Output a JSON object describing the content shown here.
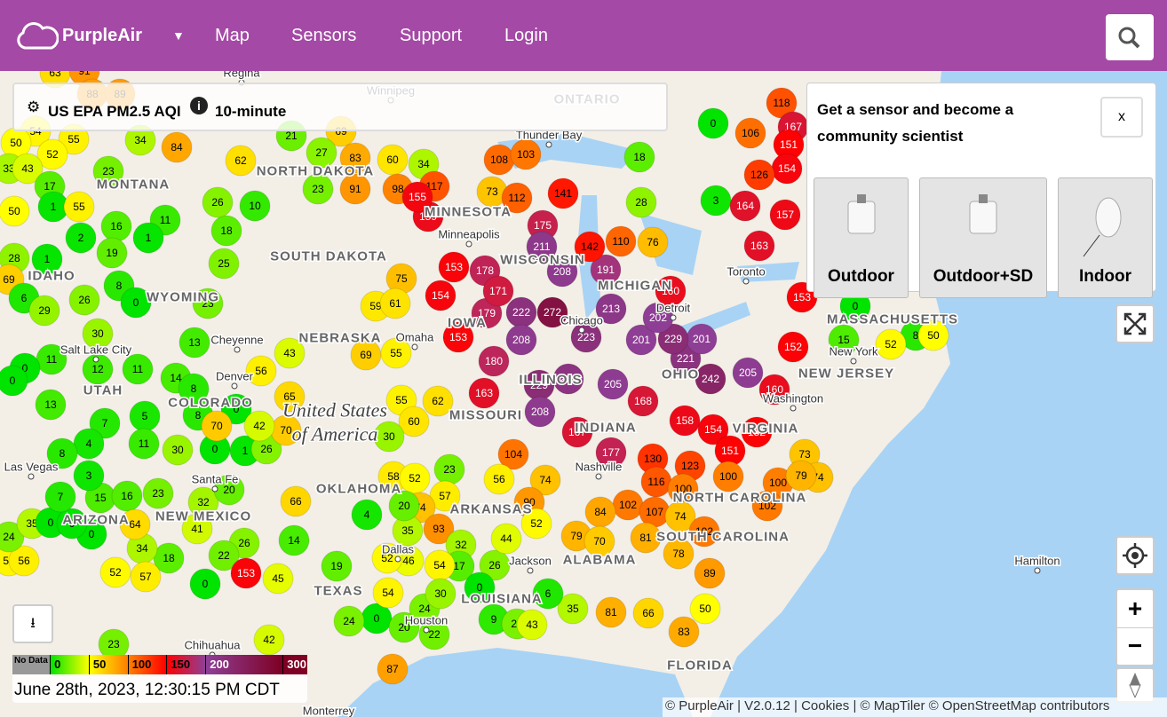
{
  "header": {
    "brand": "PurpleAir",
    "nav": [
      "Map",
      "Sensors",
      "Support",
      "Login"
    ]
  },
  "toolbar": {
    "metric": "US EPA PM2.5 AQI",
    "period": "10-minute"
  },
  "promo": {
    "title": "Get a sensor and become a community scientist",
    "close": "x",
    "products": [
      "Outdoor",
      "Outdoor+SD",
      "Indoor"
    ]
  },
  "legend": {
    "no_data": "No Data",
    "ticks": [
      0,
      50,
      100,
      150,
      200,
      300
    ]
  },
  "timestamp": "June 28th, 2023, 12:30:15 PM CDT",
  "attribution": "© PurpleAir | V2.0.12 | Cookies | © MapTiler © OpenStreetMap contributors",
  "map": {
    "country": [
      "United States",
      "of America"
    ],
    "states": [
      "MONTANA",
      "NORTH DAKOTA",
      "MINNESOTA",
      "WISCONSIN",
      "MICHIGAN",
      "SOUTH DAKOTA",
      "WYOMING",
      "IDAHO",
      "NEBRASKA",
      "IOWA",
      "ILLINOIS",
      "INDIANA",
      "OHIO",
      "UTAH",
      "COLORADO",
      "MISSOURI",
      "ARIZONA",
      "NEW MEXICO",
      "OKLAHOMA",
      "ARKANSAS",
      "TEXAS",
      "LOUISIANA",
      "ALABAMA",
      "NORTH CAROLINA",
      "SOUTH CAROLINA",
      "VIRGINIA",
      "NEW JERSEY",
      "MASSACHUSETTS",
      "FLORIDA",
      "ONTARIO"
    ],
    "cities": [
      "Regina",
      "Winnipeg",
      "Thunder Bay",
      "Minneapolis",
      "Toronto",
      "Detroit",
      "Chicago",
      "Omaha",
      "Cheyenne",
      "Salt Lake City",
      "Denver",
      "Las Vegas",
      "Santa Fe",
      "Nashville",
      "Washington",
      "New York",
      "Dallas",
      "Jackson",
      "Houston",
      "Chihuahua",
      "Monterrey",
      "Hamilton"
    ]
  },
  "sensors": [
    63,
    91,
    88,
    89,
    54,
    55,
    50,
    52,
    33,
    43,
    17,
    1,
    55,
    23,
    50,
    16,
    2,
    11,
    1,
    19,
    28,
    1,
    69,
    6,
    29,
    26,
    8,
    0,
    30,
    11,
    12,
    11,
    0,
    0,
    13,
    7,
    4,
    8,
    5,
    11,
    30,
    0,
    1,
    26,
    8,
    14,
    8,
    13,
    23,
    25,
    18,
    26,
    10,
    34,
    84,
    62,
    21,
    69,
    83,
    27,
    91,
    23,
    60,
    34,
    98,
    117,
    73,
    112,
    108,
    103,
    141,
    175,
    211,
    208,
    191,
    110,
    76,
    28,
    18,
    3,
    0,
    118,
    167,
    151,
    154,
    106,
    126,
    164,
    157,
    163,
    153,
    152,
    160,
    205,
    242,
    221,
    201,
    229,
    201,
    202,
    160,
    213,
    223,
    272,
    222,
    208,
    180,
    179,
    153,
    154,
    153,
    178,
    171,
    163,
    229,
    219,
    208,
    205,
    168,
    167,
    177,
    158,
    154,
    151,
    152,
    123,
    130,
    116,
    100,
    100,
    100,
    102,
    107,
    74,
    102,
    102,
    73,
    74,
    79,
    142,
    159,
    155,
    75,
    59,
    61,
    69,
    55,
    43,
    65,
    70,
    56,
    0,
    42,
    70,
    62,
    55,
    60,
    30,
    58,
    52,
    23,
    57,
    74,
    104,
    56,
    74,
    90,
    52,
    84,
    79,
    70,
    81,
    78,
    89,
    50,
    83,
    81,
    66,
    35,
    93,
    46,
    26,
    44,
    32,
    17,
    54,
    52,
    35,
    20,
    18,
    19,
    4,
    66,
    14,
    26,
    22,
    41,
    32,
    20,
    34,
    57,
    52,
    0,
    153,
    45,
    23,
    42,
    87,
    0,
    24,
    20,
    22,
    24,
    30,
    0,
    9,
    24,
    43,
    6,
    54,
    54,
    56,
    24,
    35,
    0,
    0,
    0,
    15,
    3,
    16,
    23,
    7,
    64,
    0,
    8,
    50,
    52,
    15
  ]
}
